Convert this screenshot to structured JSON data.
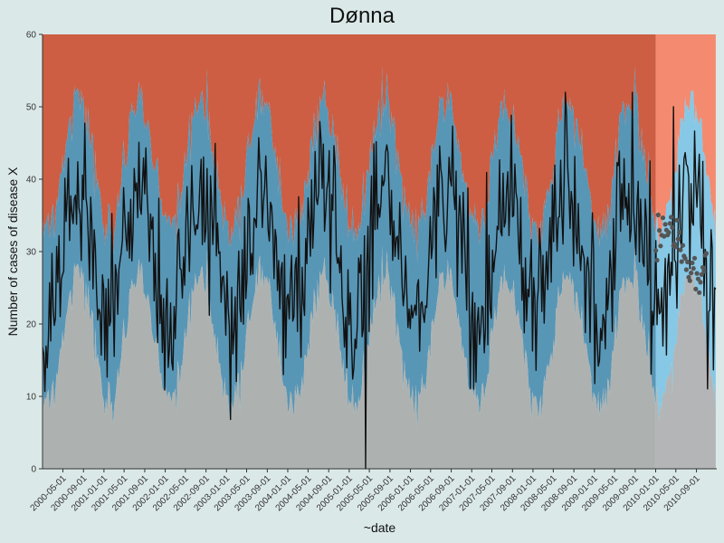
{
  "chart_data": {
    "type": "area",
    "title": "Dønna",
    "xlabel": "~date",
    "ylabel": "Number of cases of disease X",
    "ylim": [
      0,
      60
    ],
    "y_ticks": [
      "0",
      "10",
      "20",
      "30",
      "40",
      "50",
      "60"
    ],
    "x_range": [
      "2000-01-01",
      "2010-12-31"
    ],
    "forecast_start": "2010-01-01",
    "x_ticks": [
      "2000-05-01",
      "2000-09-01",
      "2001-01-01",
      "2001-05-01",
      "2001-09-01",
      "2002-01-01",
      "2002-05-01",
      "2002-09-01",
      "2003-01-01",
      "2003-05-01",
      "2003-09-01",
      "2004-01-01",
      "2004-05-01",
      "2004-09-01",
      "2005-01-01",
      "2005-05-01",
      "2005-09-01",
      "2006-01-01",
      "2006-05-01",
      "2006-09-01",
      "2007-01-01",
      "2007-05-01",
      "2007-09-01",
      "2008-01-01",
      "2008-05-01",
      "2008-09-01",
      "2009-01-01",
      "2009-05-01",
      "2009-09-01",
      "2010-01-01",
      "2010-05-01",
      "2010-09-01"
    ],
    "baseline": {
      "mean": 30,
      "seasonal_amplitude": 9,
      "peak_month": 7
    },
    "threshold_band": {
      "lower_offset": -12,
      "upper_offset": 12
    },
    "observed_examples": [
      {
        "date": "2001-01-08",
        "value": 15
      },
      {
        "date": "2002-01-20",
        "value": 14
      },
      {
        "date": "2005-04-10",
        "value": 0
      },
      {
        "date": "2007-01-15",
        "value": 11
      },
      {
        "date": "2008-07-15",
        "value": 52
      },
      {
        "date": "2009-08-15",
        "value": 52
      },
      {
        "date": "2010-04-15",
        "value": 50
      }
    ],
    "grid": false,
    "legend": "none",
    "colors": {
      "normal": "#adb2b1",
      "expected": "#5896b6",
      "high": "#cd5e43",
      "normal_forecast": "#b3b5b6",
      "expected_forecast": "#86c8e6",
      "high_forecast": "#f48a70",
      "line": "#111111",
      "forecast_points": "#555555",
      "background": "#dbe8e8"
    }
  }
}
